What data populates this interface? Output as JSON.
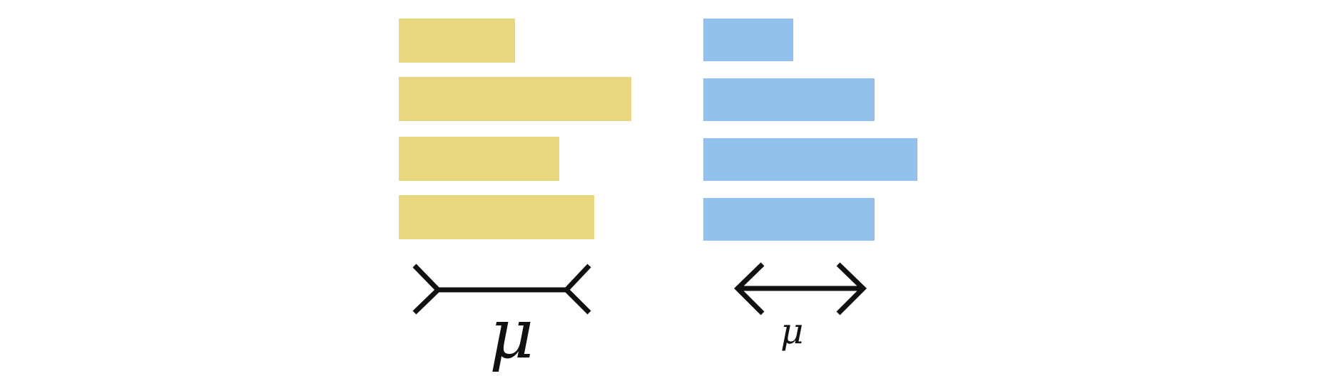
{
  "colors": {
    "yellow": "#e8d77e",
    "blue": "#94c0ee",
    "ink": "#111111",
    "background": "#ffffff"
  },
  "left_panel": {
    "bar_color_name": "yellow",
    "bar_relative_lengths": [
      0.5,
      1.0,
      0.69,
      0.84
    ],
    "arrow_style": "inward-tails",
    "label": "μ"
  },
  "right_panel": {
    "bar_color_name": "blue",
    "bar_relative_lengths": [
      0.42,
      0.8,
      1.0,
      0.8
    ],
    "arrow_style": "outward-heads",
    "label": "μ"
  },
  "icons": {
    "left_arrow": "muller-lyer-fins-in-icon",
    "right_arrow": "muller-lyer-fins-out-icon"
  }
}
